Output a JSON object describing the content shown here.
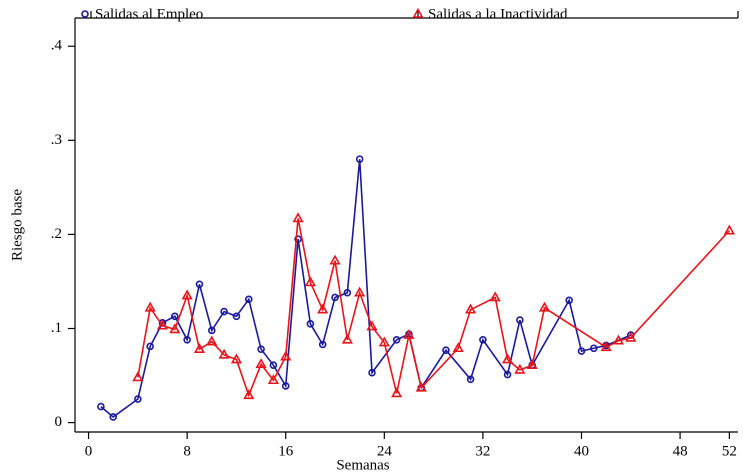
{
  "chart_data": {
    "type": "line",
    "x_label": "Semanas",
    "y_label": "Riesgo base",
    "xlim": [
      -1.1,
      52.7
    ],
    "ylim": [
      -0.01,
      0.43
    ],
    "xticks": [
      0,
      8,
      16,
      24,
      32,
      40,
      48,
      52
    ],
    "yticks": [
      0,
      {
        "value": 0.1,
        "label": ".1"
      },
      {
        "value": 0.2,
        "label": ".2"
      },
      {
        "value": 0.3,
        "label": ".3"
      },
      {
        "value": 0.4,
        "label": ".4"
      }
    ],
    "grid": false,
    "legend": "top",
    "series": [
      {
        "name": "Salidas al Empleo",
        "color": "#1a1a9c",
        "marker": "circle",
        "x": [
          1,
          2,
          4,
          5,
          6,
          7,
          8,
          9,
          10,
          11,
          12,
          13,
          14,
          15,
          16,
          17,
          18,
          19,
          20,
          21,
          22,
          23,
          25,
          26,
          27,
          29,
          31,
          32,
          34,
          35,
          36,
          39,
          40,
          41,
          42,
          44
        ],
        "values": [
          0.017,
          0.006,
          0.025,
          0.081,
          0.106,
          0.113,
          0.088,
          0.147,
          0.098,
          0.118,
          0.113,
          0.131,
          0.078,
          0.061,
          0.039,
          0.195,
          0.105,
          0.083,
          0.133,
          0.138,
          0.28,
          0.053,
          0.088,
          0.094,
          0.037,
          0.077,
          0.046,
          0.088,
          0.051,
          0.109,
          0.061,
          0.13,
          0.076,
          0.079,
          0.082,
          0.093
        ]
      },
      {
        "name": "Salidas a la Inactividad",
        "color": "#e8141b",
        "marker": "triangle",
        "x": [
          4,
          5,
          6,
          7,
          8,
          9,
          10,
          11,
          12,
          13,
          14,
          15,
          16,
          17,
          18,
          19,
          20,
          21,
          22,
          23,
          24,
          25,
          26,
          27,
          30,
          31,
          33,
          34,
          35,
          36,
          37,
          42,
          43,
          44,
          52
        ],
        "values": [
          0.048,
          0.122,
          0.103,
          0.099,
          0.135,
          0.078,
          0.086,
          0.072,
          0.067,
          0.029,
          0.062,
          0.045,
          0.07,
          0.217,
          0.149,
          0.12,
          0.172,
          0.088,
          0.138,
          0.102,
          0.085,
          0.031,
          0.093,
          0.037,
          0.079,
          0.12,
          0.133,
          0.067,
          0.056,
          0.061,
          0.122,
          0.08,
          0.087,
          0.09,
          0.204
        ]
      }
    ]
  }
}
